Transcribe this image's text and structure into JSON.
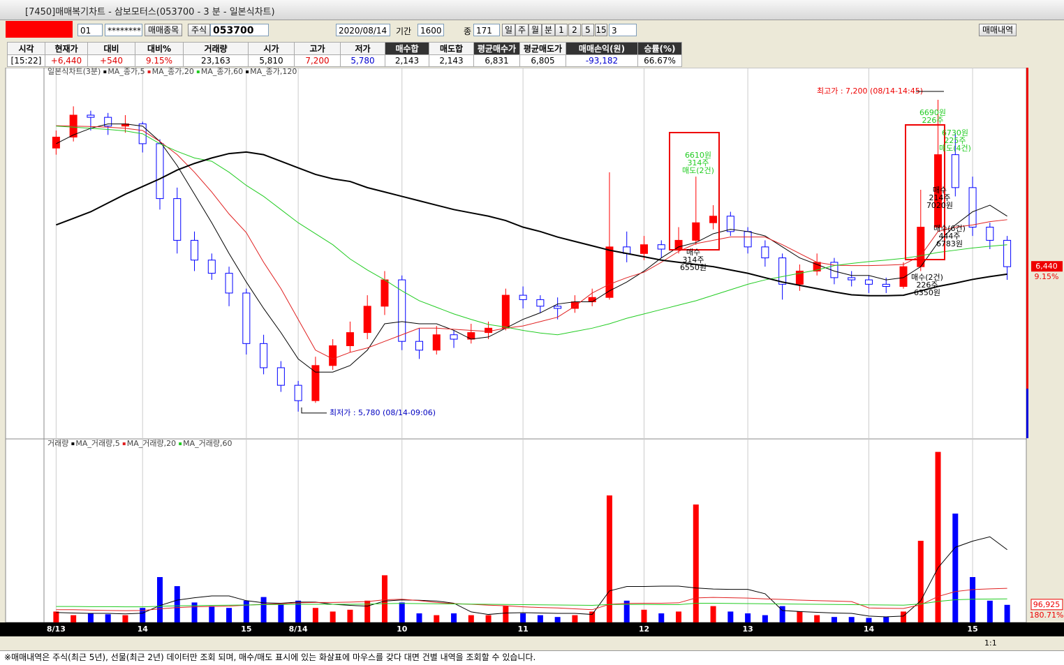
{
  "window": {
    "title": "[7450]매매복기차트 - 삼보모터스(053700 - 3 분 - 일본식차트)"
  },
  "toolbar": {
    "account": "01",
    "password": "********",
    "stock_button": "매매종목",
    "market": "주식",
    "code": "053700",
    "date": "2020/08/14",
    "period_label": "기간",
    "period": "1600",
    "count_label": "종",
    "count": "171",
    "periods": [
      "일",
      "주",
      "월",
      "분"
    ],
    "minutes": [
      "1",
      "2",
      "5",
      "15"
    ],
    "minute_input": "3",
    "history_button": "매매내역"
  },
  "info": {
    "headers": [
      "시각",
      "현재가",
      "대비",
      "대비%",
      "거래량",
      "시가",
      "고가",
      "저가",
      "매수합",
      "매도합",
      "평균매수가",
      "평균매도가",
      "매매손익(원)",
      "승률(%)"
    ],
    "values": [
      "[15:22]",
      "+6,440",
      "+540",
      "9.15%",
      "23,163",
      "5,810",
      "7,200",
      "5,780",
      "2,143",
      "2,143",
      "6,831",
      "6,805",
      "-93,182",
      "66.67%"
    ]
  },
  "chart_data": {
    "type": "candlestick",
    "title": "일본식차트(3분)",
    "categories": [
      "8/13",
      null,
      null,
      null,
      null,
      "14",
      null,
      null,
      null,
      null,
      null,
      "15",
      null,
      null,
      "8/14",
      null,
      null,
      null,
      null,
      null,
      "10",
      null,
      null,
      null,
      null,
      null,
      null,
      "11",
      null,
      null,
      null,
      null,
      null,
      null,
      "12",
      null,
      null,
      null,
      null,
      null,
      "13",
      null,
      null,
      null,
      null,
      null,
      null,
      "14",
      null,
      null,
      null,
      null,
      null,
      "15",
      null,
      null
    ],
    "open": [
      6980,
      7030,
      7130,
      7120,
      7080,
      7090,
      7000,
      6750,
      6560,
      6470,
      6410,
      6320,
      6090,
      5980,
      5900,
      5830,
      5990,
      6080,
      6140,
      6260,
      6380,
      6100,
      6060,
      6130,
      6110,
      6140,
      6160,
      6310,
      6290,
      6260,
      6250,
      6280,
      6300,
      6530,
      6500,
      6540,
      6520,
      6560,
      6640,
      6670,
      6600,
      6530,
      6480,
      6360,
      6420,
      6460,
      6390,
      6380,
      6360,
      6350,
      6440,
      6620,
      6950,
      6800,
      6620,
      6560
    ],
    "high": [
      7060,
      7170,
      7150,
      7140,
      7130,
      7100,
      7020,
      6800,
      6600,
      6500,
      6440,
      6340,
      6130,
      6010,
      5920,
      6030,
      6110,
      6190,
      6310,
      6420,
      6400,
      6160,
      6170,
      6150,
      6180,
      6190,
      6340,
      6350,
      6310,
      6300,
      6310,
      6340,
      6870,
      6600,
      6580,
      6560,
      6620,
      6850,
      6720,
      6690,
      6620,
      6560,
      6500,
      6450,
      6500,
      6480,
      6420,
      6400,
      6390,
      6460,
      6790,
      7200,
      7050,
      6850,
      6640,
      6580
    ],
    "low": [
      6950,
      7010,
      7060,
      7040,
      7050,
      6960,
      6700,
      6500,
      6420,
      6380,
      6260,
      6040,
      5950,
      5870,
      5780,
      5820,
      5970,
      6050,
      6110,
      6220,
      6060,
      6020,
      6040,
      6070,
      6090,
      6110,
      6150,
      6250,
      6230,
      6200,
      6230,
      6260,
      6290,
      6460,
      6470,
      6480,
      6500,
      6540,
      6610,
      6580,
      6500,
      6440,
      6290,
      6330,
      6400,
      6360,
      6350,
      6320,
      6320,
      6340,
      6420,
      6600,
      6760,
      6580,
      6520,
      6380
    ],
    "close": [
      7030,
      7130,
      7120,
      7080,
      7090,
      7000,
      6750,
      6560,
      6470,
      6410,
      6320,
      6090,
      5980,
      5900,
      5830,
      5990,
      6080,
      6140,
      6260,
      6380,
      6100,
      6060,
      6130,
      6110,
      6140,
      6160,
      6310,
      6290,
      6260,
      6250,
      6280,
      6300,
      6530,
      6500,
      6540,
      6520,
      6560,
      6640,
      6670,
      6600,
      6530,
      6480,
      6360,
      6420,
      6460,
      6390,
      6380,
      6360,
      6350,
      6440,
      6620,
      6950,
      6800,
      6620,
      6560,
      6440
    ],
    "up_color": "#ff0000",
    "down_color": "#0000ff",
    "ylim": [
      5659,
      7346
    ],
    "grid": true,
    "moving_averages": [
      {
        "name": "MA_종가,5",
        "color": "#000000",
        "line_width": 1,
        "values": [
          7000,
          7040,
          7070,
          7090,
          7090,
          7080,
          7010,
          6900,
          6770,
          6640,
          6500,
          6370,
          6250,
          6140,
          6020,
          5960,
          5960,
          5990,
          6060,
          6180,
          6190,
          6180,
          6180,
          6150,
          6110,
          6120,
          6160,
          6200,
          6230,
          6270,
          6280,
          6280,
          6330,
          6370,
          6420,
          6480,
          6530,
          6550,
          6590,
          6610,
          6600,
          6580,
          6530,
          6480,
          6450,
          6420,
          6400,
          6400,
          6380,
          6390,
          6440,
          6550,
          6630,
          6690,
          6720,
          6670
        ]
      },
      {
        "name": "MA_종가,20",
        "color": "#e02020",
        "line_width": 1,
        "values": [
          7082,
          7080,
          7078,
          7075,
          7070,
          7060,
          7010,
          6950,
          6870,
          6780,
          6680,
          6595,
          6460,
          6340,
          6200,
          6060,
          6020,
          6050,
          6070,
          6100,
          6130,
          6160,
          6160,
          6155,
          6150,
          6145,
          6160,
          6170,
          6190,
          6210,
          6260,
          6320,
          6360,
          6390,
          6415,
          6460,
          6510,
          6545,
          6560,
          6575,
          6575,
          6575,
          6540,
          6500,
          6460,
          6447,
          6445,
          6445,
          6447,
          6450,
          6490,
          6600,
          6620,
          6630,
          6645,
          6654
        ]
      },
      {
        "name": "MA_종가,60",
        "color": "#22cc22",
        "line_width": 1,
        "values": [
          7080,
          7075,
          7070,
          7065,
          7058,
          7045,
          7000,
          6965,
          6935,
          6920,
          6870,
          6810,
          6760,
          6700,
          6640,
          6590,
          6540,
          6475,
          6425,
          6380,
          6330,
          6285,
          6255,
          6225,
          6200,
          6177,
          6165,
          6150,
          6138,
          6130,
          6145,
          6160,
          6180,
          6205,
          6225,
          6245,
          6265,
          6285,
          6310,
          6335,
          6360,
          6380,
          6395,
          6410,
          6425,
          6445,
          6455,
          6463,
          6470,
          6478,
          6490,
          6505,
          6515,
          6525,
          6533,
          6540
        ]
      },
      {
        "name": "MA_종가,120",
        "color": "#000000",
        "line_width": 2,
        "values": [
          6630,
          6660,
          6690,
          6730,
          6770,
          6805,
          6840,
          6880,
          6910,
          6935,
          6955,
          6962,
          6950,
          6920,
          6890,
          6860,
          6840,
          6828,
          6800,
          6780,
          6760,
          6740,
          6720,
          6700,
          6685,
          6670,
          6650,
          6620,
          6600,
          6575,
          6555,
          6535,
          6515,
          6500,
          6485,
          6470,
          6460,
          6450,
          6440,
          6425,
          6410,
          6390,
          6370,
          6355,
          6340,
          6325,
          6312,
          6308,
          6308,
          6310,
          6330,
          6350,
          6365,
          6382,
          6395,
          6406
        ]
      }
    ],
    "price_marker": {
      "value": 6440,
      "label": "6,440"
    },
    "change_label": "9.15%",
    "high_note": {
      "value": 7200,
      "label": "최고가 : 7,200 (08/14-14:45)"
    },
    "low_note": {
      "value": 5780,
      "label": "최저가 : 5,780 (08/14-09:06)"
    },
    "trade_notes": [
      [
        "6610원",
        "314주",
        "매도(2건)"
      ],
      [
        "매수",
        "314주",
        "6550원"
      ],
      [
        "6690원",
        "226주"
      ],
      [
        "6730원",
        "225주",
        "매도(4건)"
      ],
      [
        "매수",
        "214주",
        "7020원"
      ],
      [
        "매수(6건)",
        "444주",
        "6783원"
      ],
      [
        "매수(2건)",
        "226주",
        "6350원"
      ]
    ],
    "volume": {
      "title": "거래량",
      "ylim": [
        0,
        1000000
      ],
      "values": [
        60000,
        40000,
        50000,
        45000,
        40000,
        80000,
        250000,
        200000,
        110000,
        90000,
        80000,
        120000,
        140000,
        100000,
        120000,
        80000,
        60000,
        70000,
        120000,
        260000,
        110000,
        50000,
        40000,
        50000,
        40000,
        40000,
        90000,
        50000,
        40000,
        30000,
        40000,
        60000,
        700000,
        120000,
        70000,
        50000,
        60000,
        650000,
        90000,
        60000,
        50000,
        40000,
        90000,
        60000,
        40000,
        30000,
        30000,
        25000,
        30000,
        60000,
        450000,
        940000,
        600000,
        250000,
        120000,
        96925
      ],
      "moving_averages": [
        {
          "name": "MA_거래량,5",
          "color": "#000000",
          "values": [
            55000,
            52000,
            50000,
            50000,
            47000,
            51000,
            93000,
            123000,
            136000,
            146000,
            146000,
            120000,
            108000,
            106000,
            112000,
            112000,
            100000,
            94000,
            90000,
            118000,
            124000,
            122000,
            118000,
            106000,
            58000,
            44000,
            52000,
            54000,
            52000,
            50000,
            50000,
            44000,
            174000,
            198000,
            198000,
            200000,
            200000,
            190000,
            184000,
            182000,
            182000,
            158000,
            66000,
            60000,
            56000,
            52000,
            50000,
            35000,
            31000,
            35000,
            119000,
            301000,
            414000,
            448000,
            472000,
            401000
          ]
        },
        {
          "name": "MA_거래량,20",
          "color": "#e02020",
          "values": [
            70000,
            70000,
            68000,
            66000,
            65000,
            66000,
            75000,
            82000,
            86000,
            88000,
            90000,
            95000,
            100000,
            103000,
            108000,
            110000,
            110000,
            112000,
            115000,
            125000,
            128000,
            120000,
            110000,
            104000,
            100000,
            95000,
            92000,
            86000,
            82000,
            80000,
            75000,
            70000,
            100000,
            105000,
            106000,
            106000,
            108000,
            135000,
            138000,
            136000,
            134000,
            130000,
            127000,
            123000,
            120000,
            118000,
            115000,
            80000,
            78000,
            77000,
            97000,
            143000,
            170000,
            181000,
            185000,
            188000
          ]
        },
        {
          "name": "MA_거래량,60",
          "color": "#22cc22",
          "values": [
            88000,
            88000,
            87000,
            87000,
            86000,
            86000,
            89000,
            92000,
            93000,
            94000,
            95000,
            96000,
            98000,
            99000,
            100000,
            100000,
            100000,
            100000,
            101000,
            104000,
            105000,
            104000,
            103000,
            102000,
            101000,
            100000,
            99000,
            98000,
            97000,
            96000,
            95000,
            94000,
            99000,
            99000,
            99000,
            98000,
            98000,
            106000,
            106000,
            105000,
            104000,
            103000,
            102000,
            101000,
            100000,
            99000,
            98000,
            97000,
            96000,
            95000,
            102000,
            116000,
            125000,
            128000,
            129000,
            130000
          ]
        }
      ],
      "marker": {
        "value": 96925,
        "label": "96,925"
      },
      "ratio_label": "180.71%"
    }
  },
  "scroll": {
    "zoom": "1:1"
  },
  "status": "※매매내역은 주식(최근 5년), 선물(최근 2년) 데이터만 조회 되며, 매수/매도 표시에 있는 화살표에 마우스를 갖다 대면 건별 내역을 조회할 수 있습니다."
}
